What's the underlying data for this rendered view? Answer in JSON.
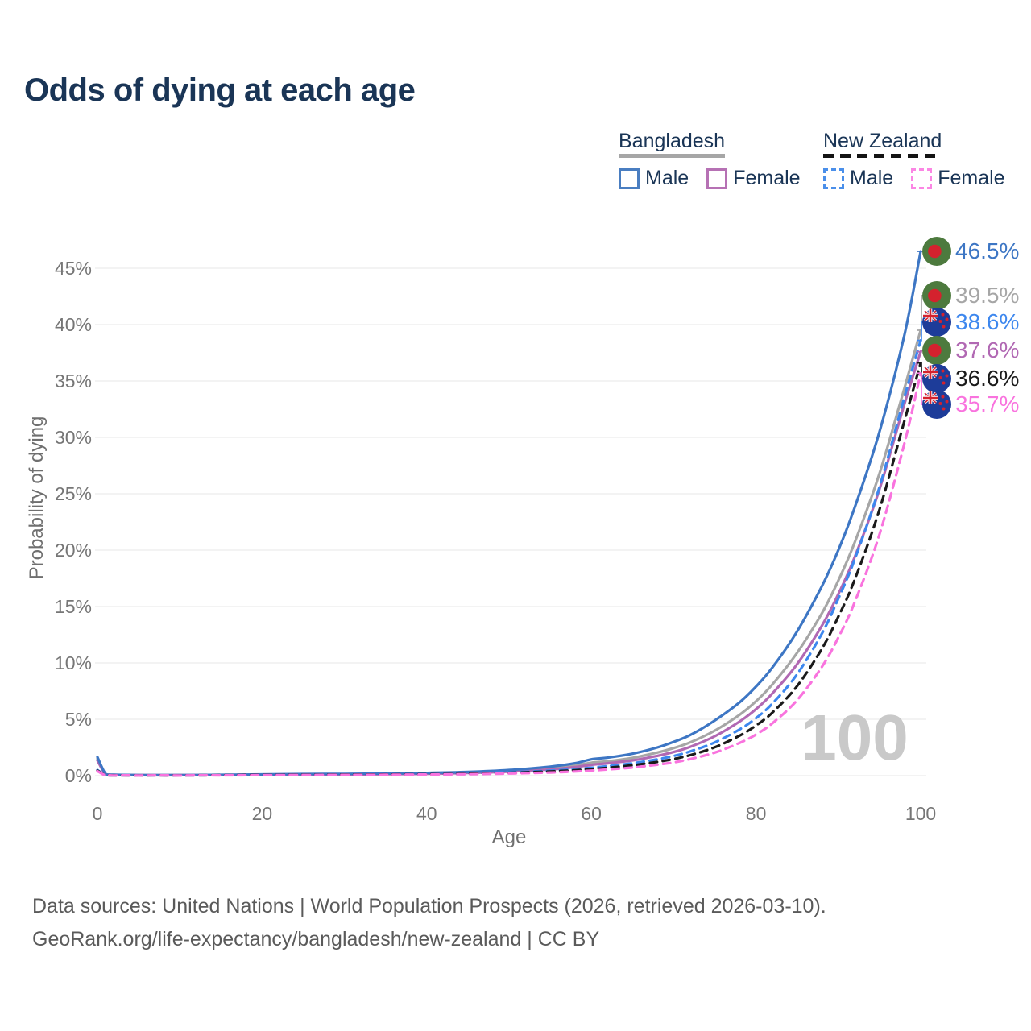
{
  "page": {
    "title": "Odds of dying at each age"
  },
  "legend": {
    "groups": [
      {
        "name": "Bangladesh",
        "line_style": "solid",
        "underline_color": "#a6a6a6",
        "items": [
          {
            "label": "Male",
            "color": "#4a7ec1"
          },
          {
            "label": "Female",
            "color": "#b671b4"
          }
        ]
      },
      {
        "name": "New Zealand",
        "line_style": "dashed",
        "underline_color": "#141414",
        "items": [
          {
            "label": "Male",
            "color": "#4a8fea"
          },
          {
            "label": "Female",
            "color": "#fb86e4"
          }
        ]
      }
    ]
  },
  "chart_data": {
    "type": "line",
    "title": "Odds of dying at each age",
    "xlabel": "Age",
    "ylabel": "Probability of dying",
    "x_ticks": [
      0,
      20,
      40,
      60,
      80,
      100
    ],
    "y_tick_labels": [
      "0%",
      "5%",
      "10%",
      "15%",
      "20%",
      "25%",
      "30%",
      "35%",
      "40%",
      "45%"
    ],
    "xlim": [
      0,
      100
    ],
    "ylim": [
      0,
      47.5
    ],
    "grid": "horizontal",
    "hover_age_indicator": "100",
    "x": [
      0,
      1,
      2,
      5,
      10,
      15,
      20,
      25,
      30,
      35,
      40,
      45,
      50,
      55,
      58,
      60,
      62,
      65,
      68,
      70,
      72,
      75,
      78,
      80,
      82,
      85,
      88,
      90,
      92,
      95,
      98,
      100
    ],
    "series": [
      {
        "name": "Bangladesh Male",
        "color": "#3d76c4",
        "dash": "solid",
        "flag": "bangladesh",
        "end_label": "46.5%",
        "values": [
          1.65,
          0.15,
          0.08,
          0.05,
          0.05,
          0.07,
          0.11,
          0.14,
          0.16,
          0.19,
          0.24,
          0.33,
          0.5,
          0.8,
          1.1,
          1.45,
          1.6,
          1.95,
          2.5,
          3.0,
          3.6,
          4.9,
          6.5,
          7.9,
          9.6,
          12.8,
          16.8,
          20.0,
          23.8,
          30.5,
          39.0,
          46.5
        ]
      },
      {
        "name": "Bangladesh",
        "color": "#a6a6a6",
        "dash": "solid",
        "flag": "bangladesh",
        "end_label": "39.5%",
        "values": [
          1.5,
          0.13,
          0.07,
          0.045,
          0.045,
          0.06,
          0.09,
          0.11,
          0.13,
          0.16,
          0.2,
          0.28,
          0.42,
          0.65,
          0.9,
          1.15,
          1.28,
          1.58,
          2.05,
          2.45,
          2.95,
          4.0,
          5.4,
          6.6,
          8.1,
          10.9,
          14.4,
          17.3,
          20.7,
          26.8,
          34.3,
          39.5
        ]
      },
      {
        "name": "New Zealand Male",
        "color": "#3d87ee",
        "dash": "dashed",
        "flag": "new-zealand",
        "end_label": "38.6%",
        "values": [
          0.5,
          0.04,
          0.02,
          0.015,
          0.015,
          0.05,
          0.09,
          0.1,
          0.11,
          0.13,
          0.16,
          0.21,
          0.3,
          0.44,
          0.58,
          0.7,
          0.85,
          1.1,
          1.45,
          1.75,
          2.15,
          2.95,
          4.1,
          5.1,
          6.4,
          9.0,
          12.6,
          15.7,
          19.2,
          25.6,
          33.5,
          38.6
        ]
      },
      {
        "name": "Bangladesh Female",
        "color": "#b168b3",
        "dash": "solid",
        "flag": "bangladesh",
        "end_label": "37.6%",
        "values": [
          1.35,
          0.12,
          0.06,
          0.04,
          0.04,
          0.05,
          0.07,
          0.09,
          0.11,
          0.13,
          0.17,
          0.24,
          0.36,
          0.55,
          0.76,
          0.96,
          1.1,
          1.36,
          1.76,
          2.1,
          2.56,
          3.5,
          4.8,
          5.9,
          7.3,
          9.9,
          13.3,
          16.1,
          19.4,
          25.4,
          32.9,
          37.6
        ]
      },
      {
        "name": "New Zealand",
        "color": "#1a1a1a",
        "dash": "dashed",
        "flag": "new-zealand",
        "end_label": "36.6%",
        "values": [
          0.45,
          0.035,
          0.018,
          0.013,
          0.013,
          0.04,
          0.07,
          0.08,
          0.09,
          0.11,
          0.13,
          0.17,
          0.25,
          0.37,
          0.48,
          0.58,
          0.7,
          0.92,
          1.22,
          1.48,
          1.82,
          2.52,
          3.55,
          4.45,
          5.6,
          7.95,
          11.25,
          14.1,
          17.4,
          23.6,
          31.4,
          36.6
        ]
      },
      {
        "name": "New Zealand Female",
        "color": "#f973de",
        "dash": "dashed",
        "flag": "new-zealand",
        "end_label": "35.7%",
        "values": [
          0.4,
          0.03,
          0.015,
          0.01,
          0.01,
          0.03,
          0.045,
          0.055,
          0.065,
          0.08,
          0.1,
          0.13,
          0.19,
          0.28,
          0.37,
          0.45,
          0.55,
          0.72,
          0.97,
          1.18,
          1.47,
          2.05,
          2.9,
          3.65,
          4.65,
          6.7,
          9.65,
          12.25,
          15.4,
          21.4,
          29.4,
          35.7
        ]
      }
    ],
    "end_label_order": [
      "Bangladesh Male",
      "Bangladesh",
      "New Zealand Male",
      "Bangladesh Female",
      "New Zealand",
      "New Zealand Female"
    ]
  },
  "flag_colors": {
    "bangladesh": {
      "field": "#4d7a3e",
      "disc": "#d4222e"
    },
    "new_zealand": {
      "field": "#1d3c99",
      "cross": "#d4222e"
    }
  },
  "footer": {
    "line1": "Data sources: United Nations | World Population Prospects (2026, retrieved 2026-03-10).",
    "line2": "GeoRank.org/life-expectancy/bangladesh/new-zealand | CC BY"
  }
}
